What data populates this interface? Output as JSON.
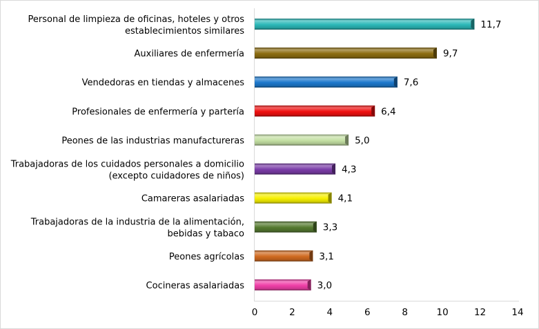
{
  "chart_data": {
    "type": "bar",
    "orientation": "horizontal",
    "title": "",
    "xlabel": "",
    "ylabel": "",
    "xlim": [
      0,
      14
    ],
    "xticks": [
      "0",
      "2",
      "4",
      "6",
      "8",
      "10",
      "12",
      "14"
    ],
    "grid": false,
    "categories": [
      [
        "Personal de limpieza de oficinas, hoteles y otros",
        "establecimientos similares"
      ],
      [
        "Auxiliares de enfermería"
      ],
      [
        "Vendedoras en tiendas y almacenes"
      ],
      [
        "Profesionales de enfermería y partería"
      ],
      [
        "Peones de las industrias manufactureras"
      ],
      [
        "Trabajadoras de los cuidados personales a domicilio",
        "(excepto cuidadores de niños)"
      ],
      [
        "Camareras asalariadas"
      ],
      [
        "Trabajadoras de la industria de la alimentación,",
        "bebidas y tabaco"
      ],
      [
        "Peones agrícolas"
      ],
      [
        "Cocineras asalariadas"
      ]
    ],
    "values": [
      11.7,
      9.7,
      7.6,
      6.4,
      5.0,
      4.3,
      4.1,
      3.3,
      3.1,
      3.0
    ],
    "value_labels": [
      "11,7",
      "9,7",
      "7,6",
      "6,4",
      "5,0",
      "4,3",
      "4,1",
      "3,3",
      "3,1",
      "3,0"
    ],
    "colors": [
      "#2CB8B8",
      "#8C6C10",
      "#1C78CC",
      "#F01010",
      "#C4E0A4",
      "#7A3CA8",
      "#F6F000",
      "#557A30",
      "#D06A20",
      "#F040A8"
    ]
  }
}
